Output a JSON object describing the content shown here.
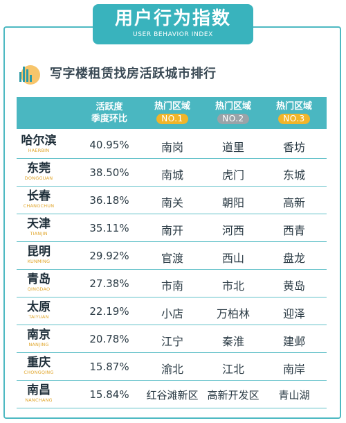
{
  "header": {
    "title": "用户行为指数",
    "subtitle_en": "USER BEHAVIOR INDEX"
  },
  "section_title": "写字楼租赁找房活跃城市排行",
  "colors": {
    "accent": "#39b3bd",
    "pill_no1": "#f1b52a",
    "pill_no2": "#9aa3a8",
    "pill_no3": "#f1b52a",
    "city_en": "#e0a52a"
  },
  "table": {
    "headers": {
      "rate_line1": "活跃度",
      "rate_line2": "季度环比",
      "hot_area": "热门区域",
      "no1": "NO.1",
      "no2": "NO.2",
      "no3": "NO.3"
    },
    "rows": [
      {
        "city": "哈尔滨",
        "city_en": "HAERBIN",
        "rate": "40.95%",
        "no1": "南岗",
        "no2": "道里",
        "no3": "香坊"
      },
      {
        "city": "东莞",
        "city_en": "DONGGUAN",
        "rate": "38.50%",
        "no1": "南城",
        "no2": "虎门",
        "no3": "东城"
      },
      {
        "city": "长春",
        "city_en": "CHANGCHUN",
        "rate": "36.18%",
        "no1": "南关",
        "no2": "朝阳",
        "no3": "高新"
      },
      {
        "city": "天津",
        "city_en": "TIANJIN",
        "rate": "35.11%",
        "no1": "南开",
        "no2": "河西",
        "no3": "西青"
      },
      {
        "city": "昆明",
        "city_en": "KUNMING",
        "rate": "29.92%",
        "no1": "官渡",
        "no2": "西山",
        "no3": "盘龙"
      },
      {
        "city": "青岛",
        "city_en": "QINGDAO",
        "rate": "27.38%",
        "no1": "市南",
        "no2": "市北",
        "no3": "黄岛"
      },
      {
        "city": "太原",
        "city_en": "TAIYUAN",
        "rate": "22.19%",
        "no1": "小店",
        "no2": "万柏林",
        "no3": "迎泽"
      },
      {
        "city": "南京",
        "city_en": "NANJING",
        "rate": "20.78%",
        "no1": "江宁",
        "no2": "秦淮",
        "no3": "建邺"
      },
      {
        "city": "重庆",
        "city_en": "CHONGQING",
        "rate": "15.87%",
        "no1": "渝北",
        "no2": "江北",
        "no3": "南岸"
      },
      {
        "city": "南昌",
        "city_en": "NANCHANG",
        "rate": "15.84%",
        "no1": "红谷滩新区",
        "no2": "高新开发区",
        "no3": "青山湖"
      }
    ]
  }
}
